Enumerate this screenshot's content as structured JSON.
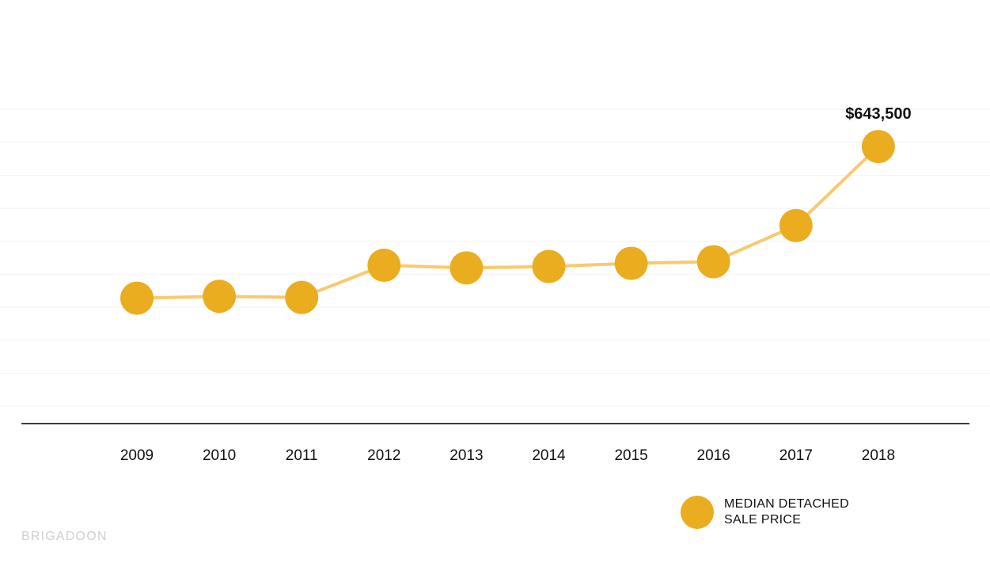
{
  "chart_data": {
    "type": "line",
    "categories": [
      "2009",
      "2010",
      "2011",
      "2012",
      "2013",
      "2014",
      "2015",
      "2016",
      "2017",
      "2018"
    ],
    "series": [
      {
        "name": "MEDIAN DETACHED SALE PRICE",
        "values": [
          413700,
          416500,
          414800,
          463600,
          459600,
          461700,
          466500,
          468900,
          523800,
          643500
        ]
      }
    ],
    "point_label": "$643,500",
    "ylim": [
      250000,
      700000
    ],
    "grid": true,
    "legend_position": "bottom-right"
  },
  "legend": {
    "line1": "MEDIAN DETACHED",
    "line2": "SALE PRICE"
  },
  "watermark": "BRIGADOON",
  "colors": {
    "marker": "#ebad20",
    "line": "#f9c96c",
    "baseline": "#3a3a3a",
    "grid": "#f2f2f2",
    "watermark": "#cfcfcf"
  }
}
